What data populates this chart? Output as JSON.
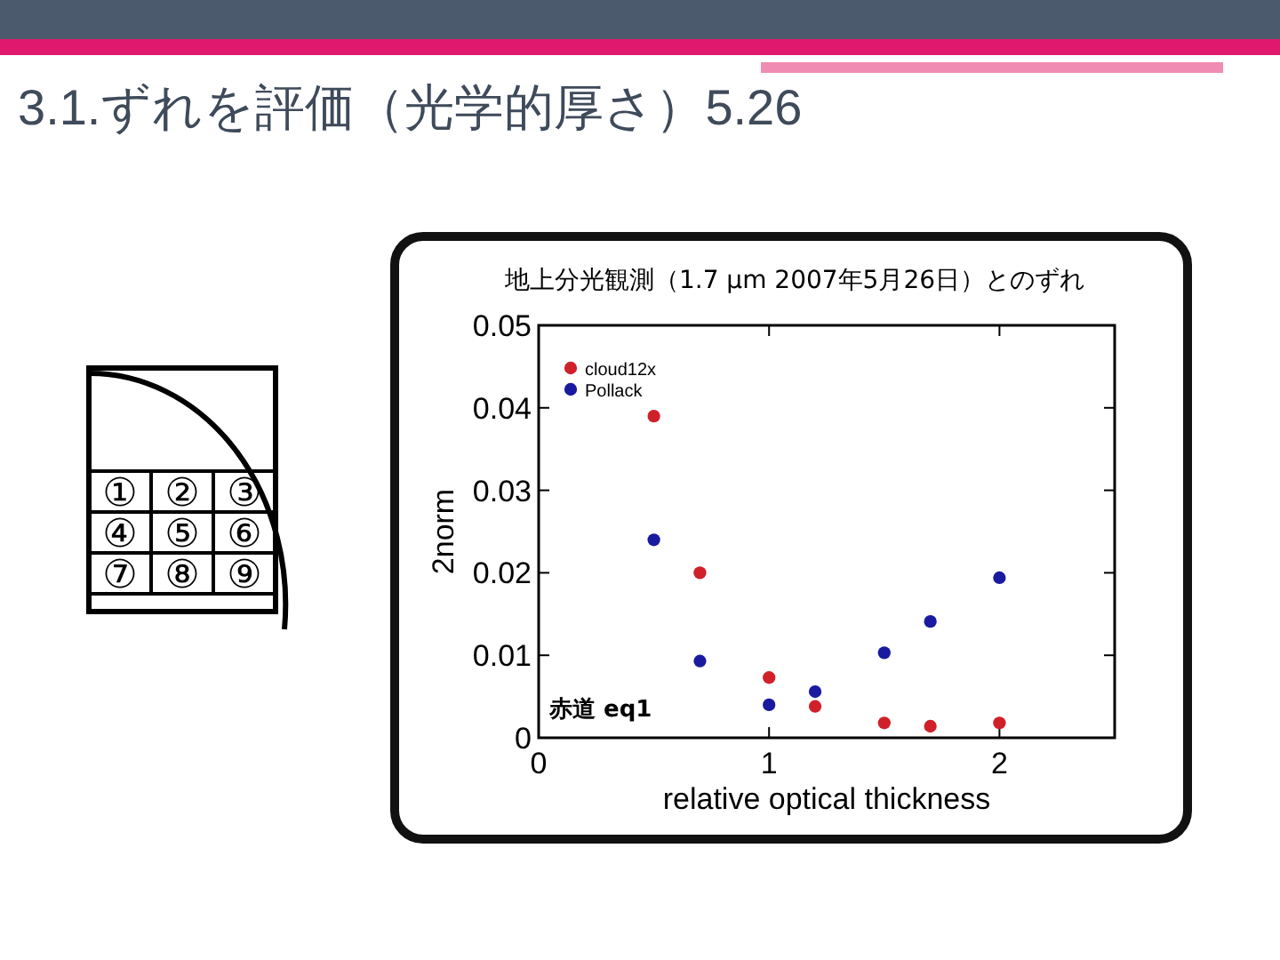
{
  "chart_data": {
    "type": "scatter",
    "title": "3.1.ずれを評価（光学的厚さ）5.26",
    "subtitle": "地上分光観測（1.7 μm 2007年5月26日）とのずれ",
    "xlabel": "relative optical thickness",
    "ylabel": "2norm",
    "x": [
      0.5,
      0.7,
      1,
      1.2,
      1.5,
      1.7,
      2
    ],
    "series": [
      {
        "name": "cloud12x",
        "color": "#d0202a",
        "values": [
          0.039,
          0.02,
          0.0073,
          0.0038,
          0.0018,
          0.0014,
          0.0018
        ]
      },
      {
        "name": "Pollack",
        "color": "#1a1aa0",
        "values": [
          0.024,
          0.0093,
          0.004,
          0.0056,
          0.0103,
          0.0141,
          0.0194
        ]
      }
    ],
    "xlim": [
      0,
      2.5
    ],
    "xticks": [
      0,
      1,
      2
    ],
    "ylim": [
      0,
      0.05
    ],
    "yticks": [
      0,
      0.01,
      0.02,
      0.03,
      0.04,
      0.05
    ],
    "annotations": [
      "赤道 eq1",
      "①",
      "②",
      "③",
      "④",
      "⑤",
      "⑥",
      "⑦",
      "⑧",
      "⑨"
    ],
    "marker": "circle",
    "legend": "top left",
    "grid": false
  }
}
